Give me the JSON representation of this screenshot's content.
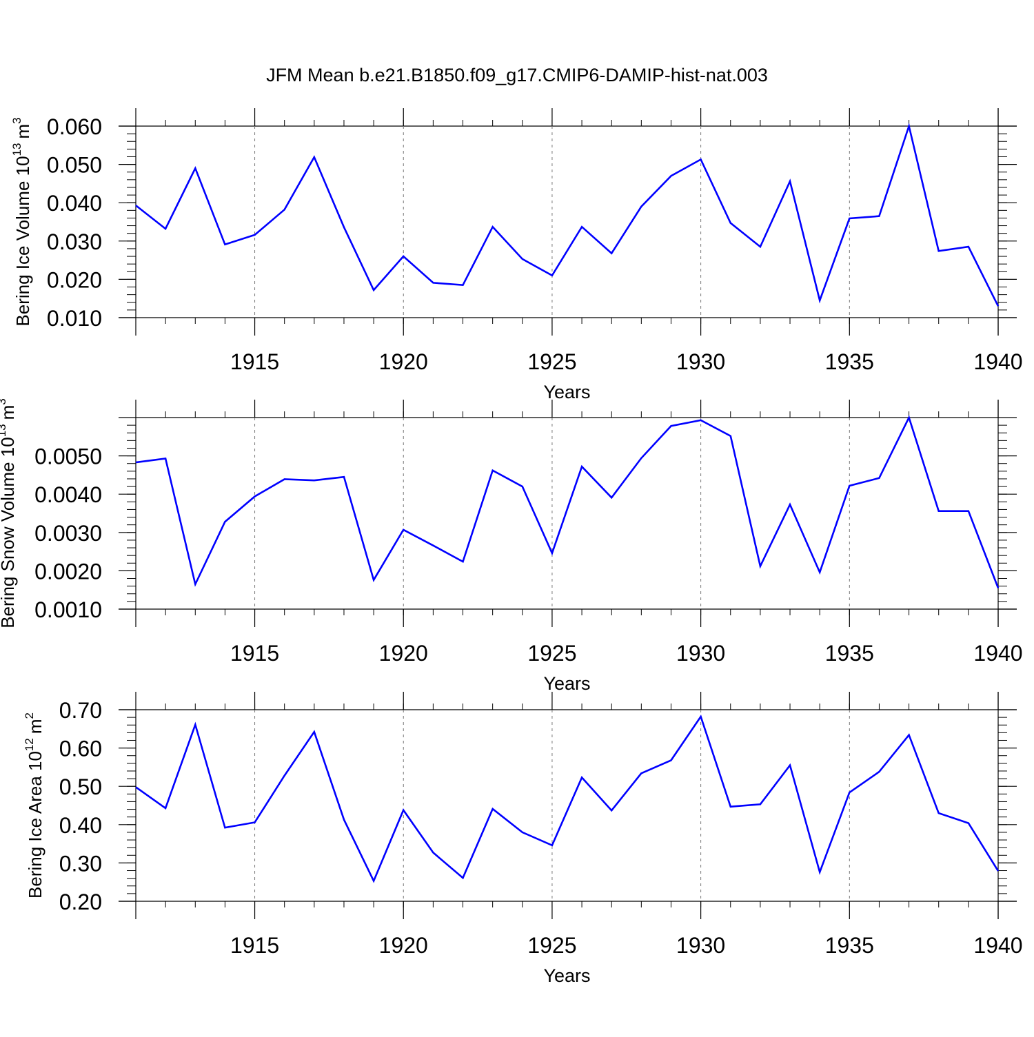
{
  "figure": {
    "title": "JFM Mean b.e21.B1850.f09_g17.CMIP6-DAMIP-hist-nat.003"
  },
  "chart_data": [
    {
      "type": "line",
      "title": "JFM Mean b.e21.B1850.f09_g17.CMIP6-DAMIP-hist-nat.003",
      "xlabel": "Years",
      "ylabel": "Bering Ice Volume 10",
      "ylabel_exp": "13",
      "ylabel_unit": "m",
      "ylabel_unit_exp": "3",
      "xlim": [
        1911,
        1940
      ],
      "ylim": [
        0.01,
        0.06
      ],
      "xticks": [
        1915,
        1920,
        1925,
        1930,
        1935,
        1940
      ],
      "yticks": [
        "0.010",
        "0.020",
        "0.030",
        "0.040",
        "0.050",
        "0.060"
      ],
      "ytick_values": [
        0.01,
        0.02,
        0.03,
        0.04,
        0.05,
        0.06
      ],
      "grid": "vertical-dashed",
      "color": "#0000ff",
      "x": [
        1911,
        1912,
        1913,
        1914,
        1915,
        1916,
        1917,
        1918,
        1919,
        1920,
        1921,
        1922,
        1923,
        1924,
        1925,
        1926,
        1927,
        1928,
        1929,
        1930,
        1931,
        1932,
        1933,
        1934,
        1935,
        1936,
        1937,
        1938,
        1939,
        1940
      ],
      "y": [
        0.0393,
        0.0332,
        0.049,
        0.0291,
        0.0316,
        0.0382,
        0.0519,
        0.0336,
        0.0172,
        0.026,
        0.0191,
        0.0185,
        0.0337,
        0.0253,
        0.021,
        0.0337,
        0.0268,
        0.039,
        0.047,
        0.0513,
        0.0347,
        0.0285,
        0.0456,
        0.0145,
        0.0359,
        0.0365,
        0.06,
        0.0274,
        0.0285,
        0.013
      ]
    },
    {
      "type": "line",
      "xlabel": "Years",
      "ylabel": "Bering Snow Volume 10",
      "ylabel_exp": "13",
      "ylabel_unit": "m",
      "ylabel_unit_exp": "3",
      "xlim": [
        1911,
        1940
      ],
      "ylim": [
        0.001,
        0.006
      ],
      "xticks": [
        1915,
        1920,
        1925,
        1930,
        1935,
        1940
      ],
      "yticks": [
        "0.0010",
        "0.0020",
        "0.0030",
        "0.0040",
        "0.0050"
      ],
      "ytick_values": [
        0.001,
        0.002,
        0.003,
        0.004,
        0.005
      ],
      "grid": "vertical-dashed",
      "color": "#0000ff",
      "x": [
        1911,
        1912,
        1913,
        1914,
        1915,
        1916,
        1917,
        1918,
        1919,
        1920,
        1921,
        1922,
        1923,
        1924,
        1925,
        1926,
        1927,
        1928,
        1929,
        1930,
        1931,
        1932,
        1933,
        1934,
        1935,
        1936,
        1937,
        1938,
        1939,
        1940
      ],
      "y": [
        0.00483,
        0.00493,
        0.00165,
        0.00328,
        0.00394,
        0.00439,
        0.00436,
        0.00445,
        0.00176,
        0.00307,
        0.00266,
        0.00224,
        0.00462,
        0.0042,
        0.00246,
        0.00472,
        0.00391,
        0.00494,
        0.00578,
        0.00593,
        0.00552,
        0.00212,
        0.00373,
        0.00196,
        0.00422,
        0.00442,
        0.006,
        0.00356,
        0.00356,
        0.00155
      ]
    },
    {
      "type": "line",
      "xlabel": "Years",
      "ylabel": "Bering Ice Area 10",
      "ylabel_exp": "12",
      "ylabel_unit": "m",
      "ylabel_unit_exp": "2",
      "xlim": [
        1911,
        1940
      ],
      "ylim": [
        0.2,
        0.7
      ],
      "xticks": [
        1915,
        1920,
        1925,
        1930,
        1935,
        1940
      ],
      "yticks": [
        "0.20",
        "0.30",
        "0.40",
        "0.50",
        "0.60",
        "0.70"
      ],
      "ytick_values": [
        0.2,
        0.3,
        0.4,
        0.5,
        0.6,
        0.7
      ],
      "grid": "vertical-dashed",
      "color": "#0000ff",
      "x": [
        1911,
        1912,
        1913,
        1914,
        1915,
        1916,
        1917,
        1918,
        1919,
        1920,
        1921,
        1922,
        1923,
        1924,
        1925,
        1926,
        1927,
        1928,
        1929,
        1930,
        1931,
        1932,
        1933,
        1934,
        1935,
        1936,
        1937,
        1938,
        1939,
        1940
      ],
      "y": [
        0.498,
        0.443,
        0.661,
        0.392,
        0.406,
        0.528,
        0.642,
        0.413,
        0.253,
        0.438,
        0.327,
        0.261,
        0.441,
        0.38,
        0.346,
        0.523,
        0.437,
        0.534,
        0.568,
        0.682,
        0.447,
        0.453,
        0.555,
        0.276,
        0.484,
        0.538,
        0.634,
        0.43,
        0.404,
        0.279
      ]
    }
  ]
}
